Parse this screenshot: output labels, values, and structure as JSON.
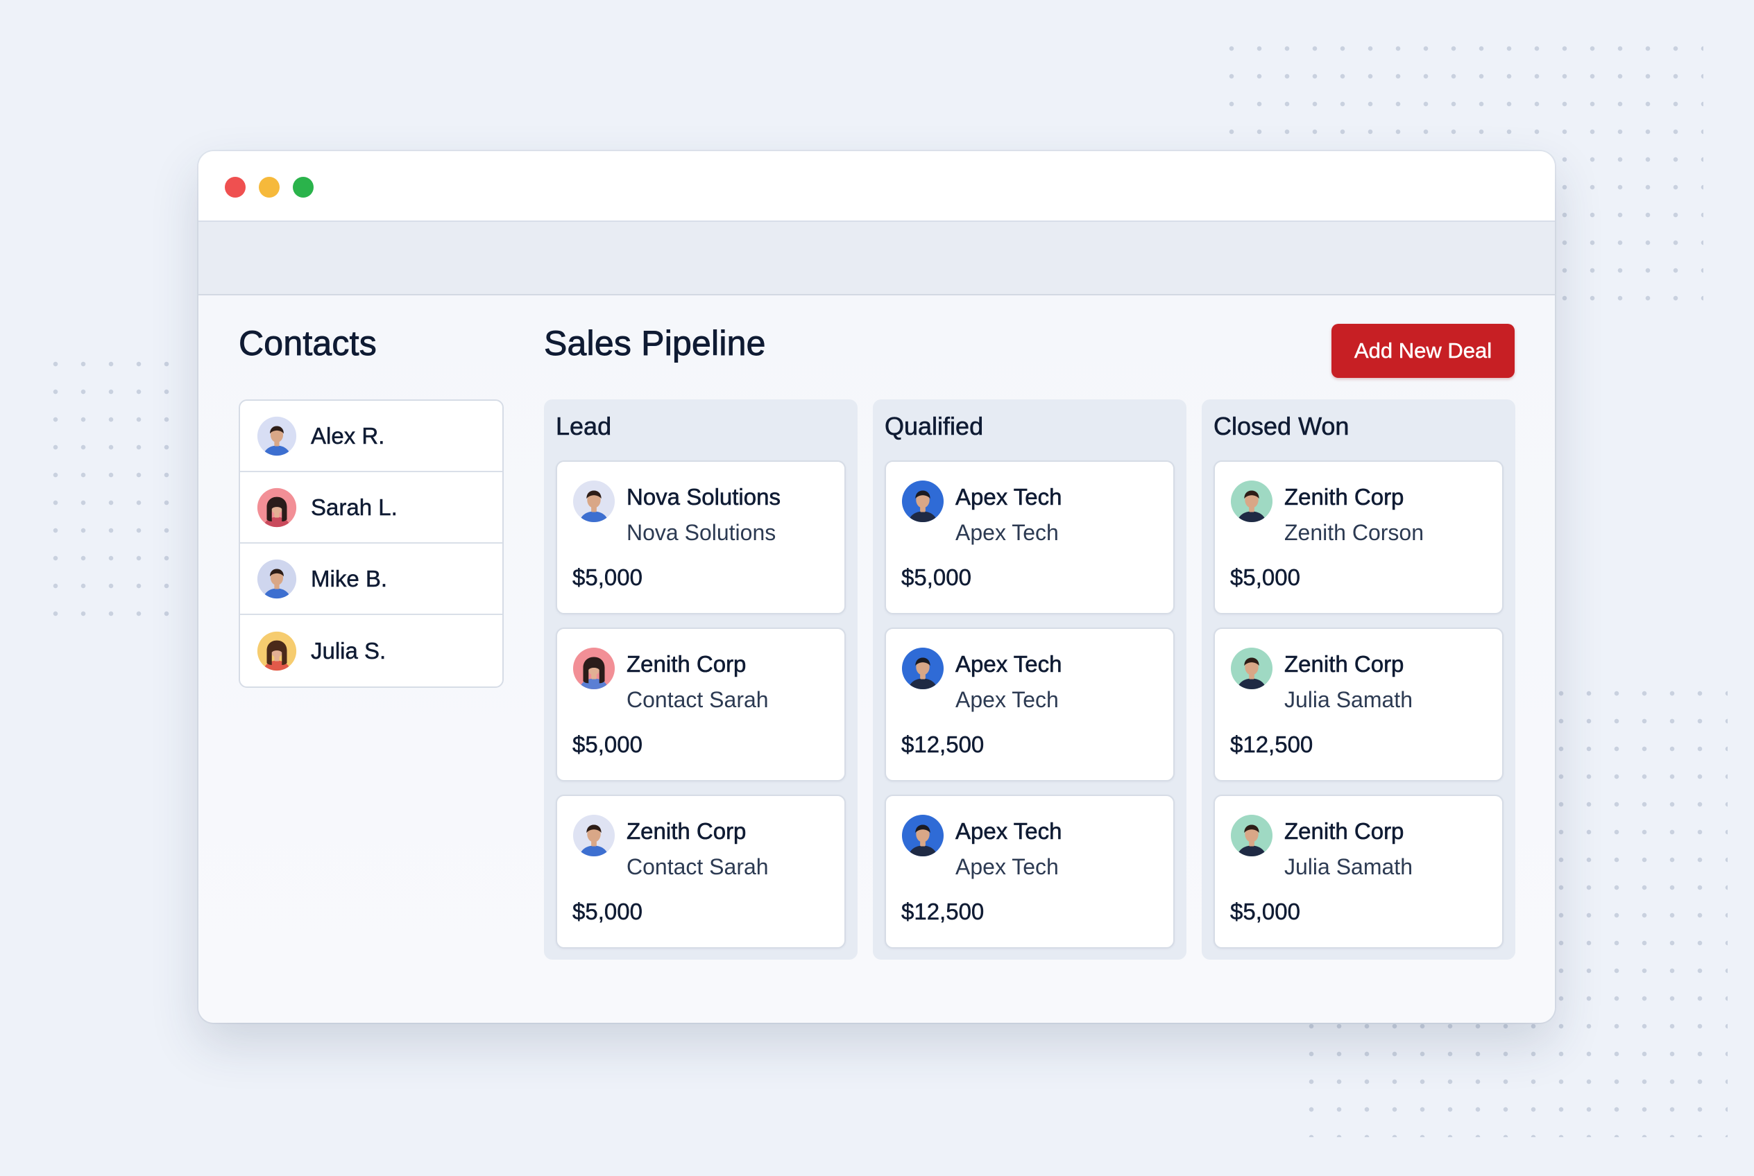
{
  "contacts": {
    "title": "Contacts",
    "items": [
      {
        "name": "Alex R.",
        "avatar": "male-avatar-icon",
        "bg": "#d8def4",
        "skin": "#d9a787",
        "hair": "#2d1d17",
        "shirt": "#3d6fd0"
      },
      {
        "name": "Sarah L.",
        "avatar": "female-avatar-icon",
        "bg": "#f28f96",
        "skin": "#e2b094",
        "hair": "#2a1c1a",
        "shirt": "#c94a5c"
      },
      {
        "name": "Mike B.",
        "avatar": "male-avatar-icon",
        "bg": "#cfd6ee",
        "skin": "#d9a787",
        "hair": "#2d1d17",
        "shirt": "#3d6fd0"
      },
      {
        "name": "Julia S.",
        "avatar": "female-avatar-icon",
        "bg": "#f6cc6f",
        "skin": "#e2b094",
        "hair": "#4a2a1a",
        "shirt": "#e25a4a"
      }
    ]
  },
  "pipeline": {
    "title": "Sales Pipeline",
    "add_button": "Add New Deal",
    "columns": [
      {
        "title": "Lead",
        "cards": [
          {
            "company": "Nova Solutions",
            "contact": "Nova Solutions",
            "amount": "$5,000",
            "avatar": "male-avatar-icon",
            "bg": "#dfe3f3",
            "skin": "#d9a787",
            "hair": "#2d1d17",
            "shirt": "#3d6fd0"
          },
          {
            "company": "Zenith Corp",
            "contact": "Contact Sarah",
            "amount": "$5,000",
            "avatar": "female-avatar-icon",
            "bg": "#f28f96",
            "skin": "#e2b094",
            "hair": "#2a1c1a",
            "shirt": "#5b7fd4"
          },
          {
            "company": "Zenith Corp",
            "contact": "Contact Sarah",
            "amount": "$5,000",
            "avatar": "male-avatar-icon",
            "bg": "#dfe3f3",
            "skin": "#d9a787",
            "hair": "#2d1d17",
            "shirt": "#3d6fd0"
          }
        ]
      },
      {
        "title": "Qualified",
        "cards": [
          {
            "company": "Apex Tech",
            "contact": "Apex Tech",
            "amount": "$5,000",
            "avatar": "male-avatar-icon",
            "bg": "#2f6bd6",
            "skin": "#d9a787",
            "hair": "#1b1b22",
            "shirt": "#1f2a44"
          },
          {
            "company": "Apex Tech",
            "contact": "Apex Tech",
            "amount": "$12,500",
            "avatar": "male-avatar-icon",
            "bg": "#2f6bd6",
            "skin": "#d9a787",
            "hair": "#1b1b22",
            "shirt": "#1f2a44"
          },
          {
            "company": "Apex Tech",
            "contact": "Apex Tech",
            "amount": "$12,500",
            "avatar": "male-avatar-icon",
            "bg": "#2f6bd6",
            "skin": "#d9a787",
            "hair": "#1b1b22",
            "shirt": "#1f2a44"
          }
        ]
      },
      {
        "title": "Closed Won",
        "cards": [
          {
            "company": "Zenith Corp",
            "contact": "Zenith Corson",
            "amount": "$5,000",
            "avatar": "male-avatar-icon",
            "bg": "#9fd9c3",
            "skin": "#d9a787",
            "hair": "#2d1d17",
            "shirt": "#1f2a44"
          },
          {
            "company": "Zenith Corp",
            "contact": "Julia Samath",
            "amount": "$12,500",
            "avatar": "male-avatar-icon",
            "bg": "#9fd9c3",
            "skin": "#d9a787",
            "hair": "#2d1d17",
            "shirt": "#1f2a44"
          },
          {
            "company": "Zenith Corp",
            "contact": "Julia Samath",
            "amount": "$5,000",
            "avatar": "male-avatar-icon",
            "bg": "#9fd9c3",
            "skin": "#d9a787",
            "hair": "#2d1d17",
            "shirt": "#1f2a44"
          }
        ]
      }
    ]
  },
  "colors": {
    "accent": "#c71f24",
    "traffic_red": "#ef5050",
    "traffic_yellow": "#f6b93b",
    "traffic_green": "#2ab34b"
  }
}
